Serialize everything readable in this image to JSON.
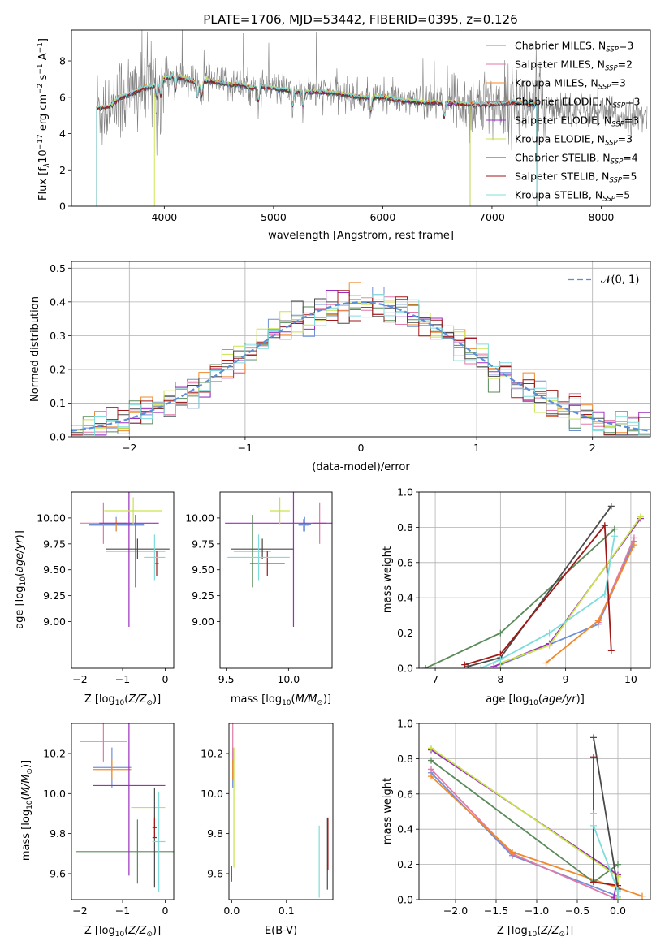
{
  "figure": {
    "title": "PLATE=1706, MJD=53442, FIBERID=0395, z=0.126"
  },
  "colors": {
    "chabrier_miles": "#6f8fd6",
    "salpeter_miles": "#e07aa8",
    "kroupa_miles": "#f08a2c",
    "chabrier_elodie": "#5b8a5b",
    "salpeter_elodie": "#9a2fbf",
    "kroupa_elodie": "#c8e34a",
    "chabrier_stelib": "#4a4a4a",
    "salpeter_stelib": "#a01818",
    "kroupa_stelib": "#7fdcdc",
    "data": "#808080",
    "normal": "#5a8fd6"
  },
  "chart_data": [
    {
      "id": "spectrum",
      "type": "line",
      "title": "PLATE=1706, MJD=53442, FIBERID=0395, z=0.126",
      "xlabel": "wavelength [Angstrom, rest frame]",
      "ylabel": "Flux [f_λ 10^-17 erg cm^-2 s^-1 A^-1]",
      "xlim": [
        3150,
        8450
      ],
      "ylim": [
        0,
        9.7
      ],
      "xticks": [
        4000,
        5000,
        6000,
        7000,
        8000
      ],
      "yticks": [
        0,
        2,
        4,
        6,
        8
      ],
      "grid": false,
      "legend_position": "right",
      "legend": [
        {
          "label": "Chabrier MILES, N",
          "sub": "SSP",
          "suffix": "=3",
          "color_key": "chabrier_miles"
        },
        {
          "label": "Salpeter MILES, N",
          "sub": "SSP",
          "suffix": "=2",
          "color_key": "salpeter_miles"
        },
        {
          "label": "Kroupa MILES, N",
          "sub": "SSP",
          "suffix": "=3",
          "color_key": "kroupa_miles"
        },
        {
          "label": "Chabrier ELODIE, N",
          "sub": "SSP",
          "suffix": "=3",
          "color_key": "chabrier_elodie"
        },
        {
          "label": "Salpeter ELODIE, N",
          "sub": "SSP",
          "suffix": "=3",
          "color_key": "salpeter_elodie"
        },
        {
          "label": "Kroupa ELODIE, N",
          "sub": "SSP",
          "suffix": "=3",
          "color_key": "kroupa_elodie"
        },
        {
          "label": "Chabrier STELIB, N",
          "sub": "SSP",
          "suffix": "=4",
          "color_key": "chabrier_stelib"
        },
        {
          "label": "Salpeter STELIB, N",
          "sub": "SSP",
          "suffix": "=5",
          "color_key": "salpeter_stelib"
        },
        {
          "label": "Kroupa STELIB, N",
          "sub": "SSP",
          "suffix": "=5",
          "color_key": "kroupa_stelib"
        }
      ],
      "continuum": [
        [
          3380,
          5.4
        ],
        [
          3500,
          5.5
        ],
        [
          3600,
          6.0
        ],
        [
          3700,
          6.2
        ],
        [
          3800,
          6.5
        ],
        [
          3900,
          6.6
        ],
        [
          4000,
          7.0
        ],
        [
          4100,
          7.2
        ],
        [
          4200,
          7.0
        ],
        [
          4300,
          6.8
        ],
        [
          4400,
          6.9
        ],
        [
          4500,
          6.8
        ],
        [
          4600,
          6.7
        ],
        [
          4700,
          6.7
        ],
        [
          4800,
          6.5
        ],
        [
          4900,
          6.6
        ],
        [
          5000,
          6.5
        ],
        [
          5200,
          6.3
        ],
        [
          5400,
          6.3
        ],
        [
          5600,
          6.2
        ],
        [
          5800,
          6.0
        ],
        [
          6000,
          6.0
        ],
        [
          6200,
          5.8
        ],
        [
          6400,
          5.7
        ],
        [
          6600,
          5.7
        ],
        [
          6800,
          5.6
        ],
        [
          7000,
          5.6
        ],
        [
          7200,
          5.7
        ],
        [
          7400,
          5.6
        ],
        [
          7600,
          5.5
        ],
        [
          7800,
          5.3
        ],
        [
          8000,
          5.1
        ],
        [
          8200,
          5.0
        ],
        [
          8400,
          4.9
        ]
      ],
      "models_start_end": {
        "miles": [
          3540,
          7410
        ],
        "elodie": [
          3380,
          6800
        ],
        "stelib": [
          3380,
          7410
        ]
      }
    },
    {
      "id": "residuals",
      "type": "step",
      "xlabel": "(data-model)/error",
      "ylabel": "Normed distribution",
      "xlim": [
        -2.5,
        2.5
      ],
      "ylim": [
        0,
        0.52
      ],
      "xticks": [
        -2,
        -1,
        0,
        1,
        2
      ],
      "yticks": [
        0.0,
        0.1,
        0.2,
        0.3,
        0.4,
        0.5
      ],
      "grid": true,
      "legend_position": "top-right",
      "normal_label": "𝒩(0, 1)",
      "bin_width": 0.1
    },
    {
      "id": "age_vs_z",
      "type": "errorbar",
      "xlabel": "Z [log10(Z/Z⊙)]",
      "ylabel": "age [log10(age/yr)]",
      "xlim": [
        -2.2,
        0.2
      ],
      "ylim": [
        8.55,
        10.25
      ],
      "xticks": [
        -2,
        -1,
        0
      ],
      "yticks": [
        9.0,
        9.25,
        9.5,
        9.75,
        10.0
      ],
      "points": [
        {
          "color_key": "chabrier_miles",
          "x": -1.15,
          "y": 9.94,
          "xerr": 0.65,
          "yerr": 0.07
        },
        {
          "color_key": "salpeter_miles",
          "x": -1.45,
          "y": 9.95,
          "xerr": 0.55,
          "yerr": 0.2
        },
        {
          "color_key": "kroupa_miles",
          "x": -1.15,
          "y": 9.93,
          "xerr": 0.65,
          "yerr": 0.06
        },
        {
          "color_key": "chabrier_elodie",
          "x": -0.7,
          "y": 9.68,
          "xerr": 0.7,
          "yerr": 0.35
        },
        {
          "color_key": "salpeter_elodie",
          "x": -0.85,
          "y": 9.95,
          "xerr": 0.7,
          "yerr": 1.0
        },
        {
          "color_key": "kroupa_elodie",
          "x": -0.75,
          "y": 10.07,
          "xerr": 0.68,
          "yerr": 0.13
        },
        {
          "color_key": "chabrier_stelib",
          "x": -0.65,
          "y": 9.7,
          "xerr": 0.75,
          "yerr": 0.1
        },
        {
          "color_key": "salpeter_stelib",
          "x": -0.2,
          "y": 9.56,
          "xerr": 0.05,
          "yerr": 0.12
        },
        {
          "color_key": "kroupa_stelib",
          "x": -0.25,
          "y": 9.62,
          "xerr": 0.25,
          "yerr": 0.22
        }
      ]
    },
    {
      "id": "age_vs_mass",
      "type": "errorbar",
      "xlabel": "mass [log10(M/M⊙)]",
      "xlim": [
        9.45,
        10.35
      ],
      "ylim": [
        8.55,
        10.25
      ],
      "xticks": [
        9.5,
        10.0
      ],
      "yticks": [
        9.0,
        9.25,
        9.5,
        9.75,
        10.0
      ],
      "points": [
        {
          "color_key": "chabrier_miles",
          "x": 10.13,
          "y": 9.94,
          "xerr": 0.05,
          "yerr": 0.07
        },
        {
          "color_key": "salpeter_miles",
          "x": 10.25,
          "y": 9.95,
          "xerr": 0.05,
          "yerr": 0.2
        },
        {
          "color_key": "kroupa_miles",
          "x": 10.12,
          "y": 9.93,
          "xerr": 0.04,
          "yerr": 0.06
        },
        {
          "color_key": "chabrier_elodie",
          "x": 9.71,
          "y": 9.68,
          "xerr": 0.15,
          "yerr": 0.35
        },
        {
          "color_key": "salpeter_elodie",
          "x": 10.04,
          "y": 9.95,
          "xerr": 0.55,
          "yerr": 1.0
        },
        {
          "color_key": "kroupa_elodie",
          "x": 9.93,
          "y": 10.07,
          "xerr": 0.08,
          "yerr": 0.13
        },
        {
          "color_key": "chabrier_stelib",
          "x": 9.79,
          "y": 9.7,
          "xerr": 0.25,
          "yerr": 0.1
        },
        {
          "color_key": "salpeter_stelib",
          "x": 9.83,
          "y": 9.56,
          "xerr": 0.14,
          "yerr": 0.12
        },
        {
          "color_key": "kroupa_stelib",
          "x": 9.76,
          "y": 9.62,
          "xerr": 0.25,
          "yerr": 0.22
        }
      ]
    },
    {
      "id": "weight_vs_age",
      "type": "line",
      "xlabel": "age [log10(age/yr)]",
      "ylabel": "mass weight",
      "xlim": [
        6.75,
        10.3
      ],
      "ylim": [
        0,
        1.0
      ],
      "xticks": [
        7,
        8,
        9,
        10
      ],
      "yticks": [
        0.0,
        0.2,
        0.4,
        0.6,
        0.8,
        1.0
      ],
      "grid": true,
      "series": [
        {
          "color_key": "chabrier_miles",
          "x": [
            8.0,
            9.5,
            10.05
          ],
          "y": [
            0.02,
            0.25,
            0.72
          ]
        },
        {
          "color_key": "salpeter_miles",
          "x": [
            9.5,
            10.05
          ],
          "y": [
            0.26,
            0.74
          ]
        },
        {
          "color_key": "kroupa_miles",
          "x": [
            8.7,
            9.5,
            10.05
          ],
          "y": [
            0.03,
            0.27,
            0.7
          ]
        },
        {
          "color_key": "chabrier_elodie",
          "x": [
            6.85,
            8.0,
            9.75
          ],
          "y": [
            0.0,
            0.2,
            0.79
          ]
        },
        {
          "color_key": "salpeter_elodie",
          "x": [
            7.9,
            8.75,
            10.15
          ],
          "y": [
            0.01,
            0.14,
            0.85
          ]
        },
        {
          "color_key": "kroupa_elodie",
          "x": [
            8.0,
            8.75,
            10.15
          ],
          "y": [
            0.03,
            0.13,
            0.86
          ]
        },
        {
          "color_key": "chabrier_stelib",
          "x": [
            7.5,
            8.0,
            9.7
          ],
          "y": [
            0.01,
            0.06,
            0.92
          ]
        },
        {
          "color_key": "salpeter_stelib",
          "x": [
            7.45,
            8.0,
            9.6,
            9.7
          ],
          "y": [
            0.02,
            0.08,
            0.81,
            0.1
          ]
        },
        {
          "color_key": "kroupa_stelib",
          "x": [
            7.7,
            8.0,
            8.75,
            9.6,
            9.75
          ],
          "y": [
            0.0,
            0.05,
            0.2,
            0.42,
            0.75
          ]
        }
      ]
    },
    {
      "id": "mass_vs_z",
      "type": "errorbar",
      "xlabel": "Z [log10(Z/Z⊙)]",
      "ylabel": "mass [log10(M/M⊙)]",
      "xlim": [
        -2.2,
        0.2
      ],
      "ylim": [
        9.47,
        10.35
      ],
      "xticks": [
        -2,
        -1,
        0
      ],
      "yticks": [
        9.6,
        9.8,
        10.0,
        10.2
      ],
      "points": [
        {
          "color_key": "chabrier_miles",
          "x": -1.25,
          "y": 10.13,
          "xerr": 0.45,
          "yerr": 0.1
        },
        {
          "color_key": "salpeter_miles",
          "x": -1.45,
          "y": 10.26,
          "xerr": 0.55,
          "yerr": 0.1
        },
        {
          "color_key": "kroupa_miles",
          "x": -1.25,
          "y": 10.12,
          "xerr": 0.45,
          "yerr": 0.05
        },
        {
          "color_key": "chabrier_elodie",
          "x": -0.65,
          "y": 9.71,
          "xerr": 1.45,
          "yerr": 0.16
        },
        {
          "color_key": "salpeter_elodie",
          "x": -0.85,
          "y": 10.04,
          "xerr": 0.85,
          "yerr": 0.45
        },
        {
          "color_key": "kroupa_elodie",
          "x": -0.4,
          "y": 9.93,
          "xerr": 0.4,
          "yerr": 0.0
        },
        {
          "color_key": "chabrier_stelib",
          "x": -0.25,
          "y": 9.78,
          "xerr": 0.05,
          "yerr": 0.25
        },
        {
          "color_key": "salpeter_stelib",
          "x": -0.25,
          "y": 9.83,
          "xerr": 0.05,
          "yerr": 0.05
        },
        {
          "color_key": "kroupa_stelib",
          "x": -0.15,
          "y": 9.76,
          "xerr": 0.15,
          "yerr": 0.25
        }
      ]
    },
    {
      "id": "mass_vs_ebv",
      "type": "errorbar",
      "xlabel": "E(B-V)",
      "xlim": [
        -0.005,
        0.185
      ],
      "ylim": [
        9.47,
        10.35
      ],
      "xticks": [
        0.0,
        0.1
      ],
      "yticks": [
        9.6,
        9.8,
        10.0,
        10.2
      ],
      "points": [
        {
          "color_key": "chabrier_miles",
          "x": 0.002,
          "y": 10.13,
          "xerr": 0.0,
          "yerr": 0.1
        },
        {
          "color_key": "salpeter_miles",
          "x": 0.002,
          "y": 10.26,
          "xerr": 0.0,
          "yerr": 0.1
        },
        {
          "color_key": "kroupa_miles",
          "x": 0.002,
          "y": 10.12,
          "xerr": 0.0,
          "yerr": 0.05
        },
        {
          "color_key": "salpeter_elodie",
          "x": 0.0,
          "y": 9.6,
          "xerr": 0.0,
          "yerr": 0.04
        },
        {
          "color_key": "kroupa_elodie",
          "x": 0.004,
          "y": 9.93,
          "xerr": 0.0,
          "yerr": 0.3
        },
        {
          "color_key": "kroupa_stelib",
          "x": 0.16,
          "y": 9.66,
          "xerr": 0.0,
          "yerr": 0.18
        },
        {
          "color_key": "chabrier_stelib",
          "x": 0.175,
          "y": 9.7,
          "xerr": 0.0,
          "yerr": 0.18
        },
        {
          "color_key": "salpeter_stelib",
          "x": 0.176,
          "y": 9.75,
          "xerr": 0.0,
          "yerr": 0.13
        }
      ]
    },
    {
      "id": "weight_vs_z",
      "type": "line",
      "xlabel": "Z [log10(Z/Z⊙)]",
      "ylabel": "mass weight",
      "xlim": [
        -2.45,
        0.4
      ],
      "ylim": [
        0,
        1.0
      ],
      "xticks": [
        -2.0,
        -1.5,
        -1.0,
        -0.5,
        0.0
      ],
      "yticks": [
        0.0,
        0.2,
        0.4,
        0.6,
        0.8,
        1.0
      ],
      "grid": true,
      "series": [
        {
          "color_key": "chabrier_miles",
          "x": [
            -2.3,
            -1.3,
            0.0
          ],
          "y": [
            0.72,
            0.25,
            0.02
          ]
        },
        {
          "color_key": "salpeter_miles",
          "x": [
            -2.3,
            -1.3,
            0.0
          ],
          "y": [
            0.74,
            0.26,
            0.0
          ]
        },
        {
          "color_key": "kroupa_miles",
          "x": [
            -2.3,
            -1.3,
            0.3
          ],
          "y": [
            0.7,
            0.27,
            0.02
          ]
        },
        {
          "color_key": "chabrier_elodie",
          "x": [
            -2.3,
            -0.3,
            0.0
          ],
          "y": [
            0.79,
            0.1,
            0.2
          ]
        },
        {
          "color_key": "salpeter_elodie",
          "x": [
            -2.3,
            0.0,
            -0.05
          ],
          "y": [
            0.85,
            0.14,
            0.01
          ]
        },
        {
          "color_key": "kroupa_elodie",
          "x": [
            -2.3,
            0.0,
            0.0
          ],
          "y": [
            0.86,
            0.13,
            0.01
          ]
        },
        {
          "color_key": "chabrier_stelib",
          "x": [
            -0.3,
            0.0,
            0.0
          ],
          "y": [
            0.92,
            0.06,
            0.02
          ]
        },
        {
          "color_key": "salpeter_stelib",
          "x": [
            -0.3,
            -0.3,
            0.0
          ],
          "y": [
            0.81,
            0.1,
            0.08
          ]
        },
        {
          "color_key": "kroupa_stelib",
          "x": [
            -0.3,
            -0.3,
            0.0,
            0.0
          ],
          "y": [
            0.49,
            0.42,
            0.05,
            0.0
          ]
        }
      ]
    }
  ]
}
